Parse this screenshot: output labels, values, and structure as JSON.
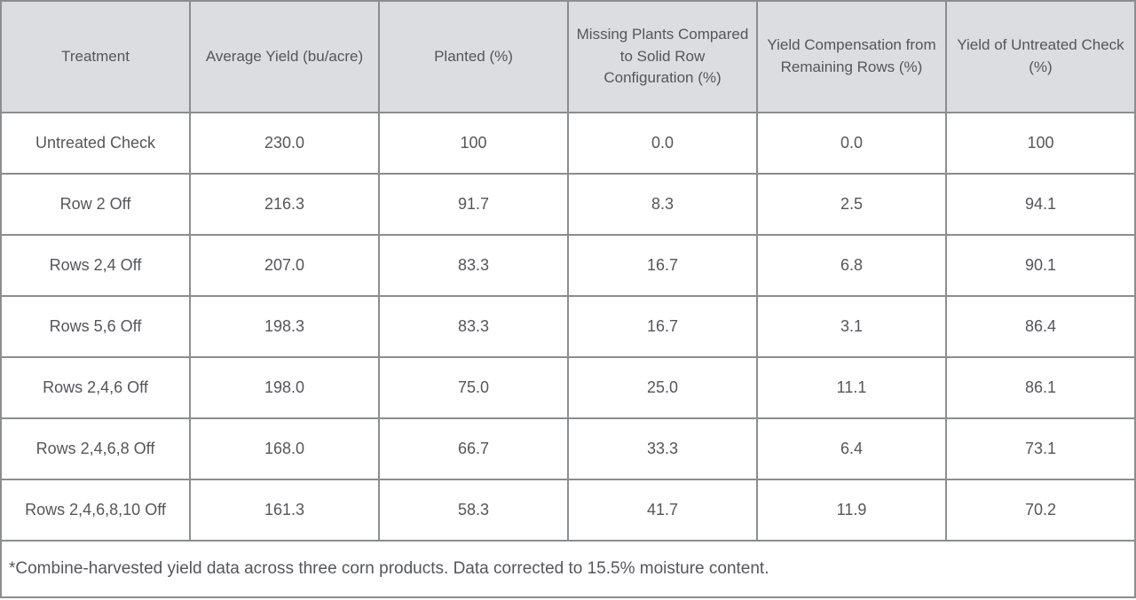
{
  "colors": {
    "header_background": "#dcdde0",
    "border": "#8b8d90",
    "outer_border": "#77797c",
    "text": "#55565a",
    "body_background": "#ffffff"
  },
  "chart_data": {
    "type": "table",
    "columns": [
      "Treatment",
      "Average Yield (bu/acre)",
      "Planted (%)",
      "Missing Plants Compared to Solid Row Configuration (%)",
      "Yield Compensation from Remaining Rows (%)",
      "Yield of Untreated Check (%)"
    ],
    "rows": [
      [
        "Untreated Check",
        "230.0",
        "100",
        "0.0",
        "0.0",
        "100"
      ],
      [
        "Row 2 Off",
        "216.3",
        "91.7",
        "8.3",
        "2.5",
        "94.1"
      ],
      [
        "Rows 2,4 Off",
        "207.0",
        "83.3",
        "16.7",
        "6.8",
        "90.1"
      ],
      [
        "Rows 5,6 Off",
        "198.3",
        "83.3",
        "16.7",
        "3.1",
        "86.4"
      ],
      [
        "Rows 2,4,6 Off",
        "198.0",
        "75.0",
        "25.0",
        "11.1",
        "86.1"
      ],
      [
        "Rows 2,4,6,8 Off",
        "168.0",
        "66.7",
        "33.3",
        "6.4",
        "73.1"
      ],
      [
        "Rows 2,4,6,8,10 Off",
        "161.3",
        "58.3",
        "41.7",
        "11.9",
        "70.2"
      ]
    ],
    "footnote": "*Combine-harvested yield data across three corn products. Data corrected to 15.5% moisture content."
  }
}
